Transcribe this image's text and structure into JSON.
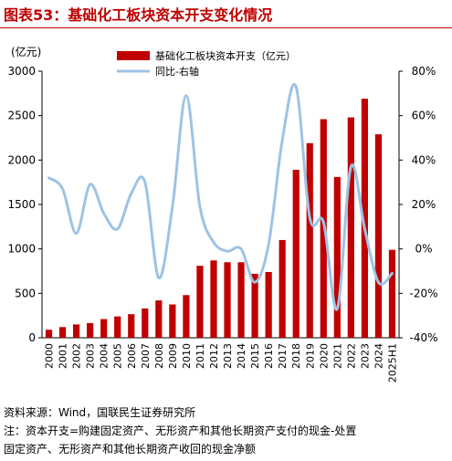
{
  "figure": {
    "title": "图表53：基础化工板块资本开支变化情况",
    "source": "资料来源：Wind，国联民生证券研究所",
    "note_line1": "注：资本开支=购建固定资产、无形资产和其他长期资产支付的现金-处置",
    "note_line2": "固定资产、无形资产和其他长期资产收回的现金净额"
  },
  "chart_data": {
    "type": "bar",
    "title": "",
    "y_unit_label": "(亿元)",
    "categories": [
      "2000",
      "2001",
      "2002",
      "2003",
      "2004",
      "2005",
      "2006",
      "2007",
      "2008",
      "2009",
      "2010",
      "2011",
      "2012",
      "2013",
      "2014",
      "2015",
      "2016",
      "2017",
      "2018",
      "2019",
      "2020",
      "2021",
      "2022",
      "2023",
      "2024",
      "2025H1"
    ],
    "series": [
      {
        "name": "基础化工板块资本开支（亿元）",
        "type": "bar",
        "axis": "left",
        "color": "#c00000",
        "values": [
          90,
          120,
          150,
          165,
          210,
          240,
          265,
          330,
          420,
          375,
          480,
          810,
          870,
          850,
          850,
          720,
          740,
          1100,
          1890,
          2190,
          2460,
          1810,
          2480,
          2690,
          2290,
          990
        ]
      },
      {
        "name": "同比-右轴",
        "type": "line",
        "axis": "right",
        "color": "#9dc3e6",
        "values": [
          32,
          27,
          7,
          29,
          16,
          9,
          25,
          30,
          -13,
          19,
          69,
          19,
          3,
          -1,
          0,
          -15,
          2,
          49,
          73,
          14,
          12,
          -27,
          37,
          9,
          -15,
          -11
        ]
      }
    ],
    "y_left": {
      "min": 0,
      "max": 3000,
      "ticks": [
        0,
        500,
        1000,
        1500,
        2000,
        2500,
        3000
      ]
    },
    "y_right": {
      "min": -40,
      "max": 80,
      "ticks": [
        -40,
        -20,
        0,
        20,
        40,
        60,
        80
      ],
      "tick_suffix": "%"
    },
    "legend_position": "top-center",
    "grid": false
  }
}
